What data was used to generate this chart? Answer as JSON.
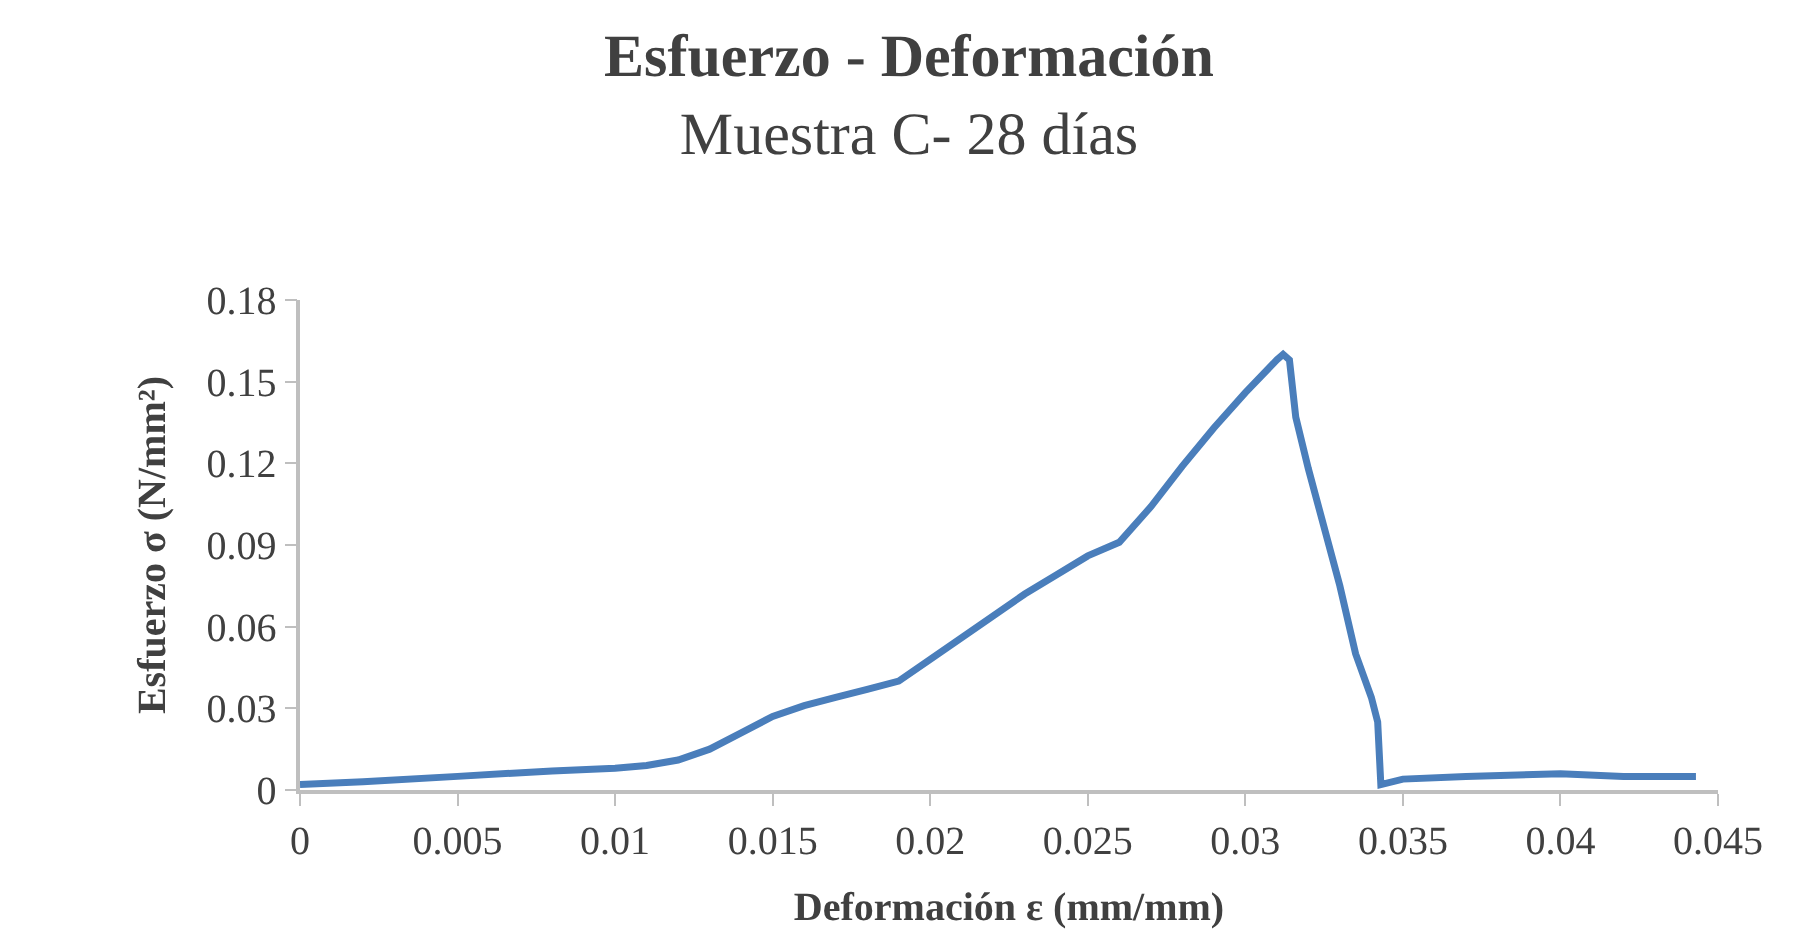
{
  "chart_data": {
    "type": "line",
    "title": "Esfuerzo - Deformación",
    "subtitle": "Muestra C- 28 días",
    "xlabel": "Deformación ε (mm/mm)",
    "ylabel": "Esfuerzo σ (N/mm²)",
    "xlim": [
      0,
      0.045
    ],
    "xticks": [
      0,
      0.005,
      0.01,
      0.015,
      0.02,
      0.025,
      0.03,
      0.035,
      0.04,
      0.045
    ],
    "ylim": [
      0,
      0.18
    ],
    "yticks": [
      0,
      0.03,
      0.06,
      0.09,
      0.12,
      0.15,
      0.18
    ],
    "marker": "none",
    "line_style": "solid",
    "series": [
      {
        "color": "#4a7ebb",
        "x": [
          0,
          0.002,
          0.005,
          0.008,
          0.01,
          0.011,
          0.012,
          0.013,
          0.014,
          0.015,
          0.016,
          0.017,
          0.018,
          0.019,
          0.02,
          0.021,
          0.022,
          0.023,
          0.024,
          0.025,
          0.026,
          0.027,
          0.028,
          0.029,
          0.03,
          0.031,
          0.0312,
          0.0314,
          0.0316,
          0.032,
          0.033,
          0.0335,
          0.034,
          0.0342,
          0.0343,
          0.035,
          0.037,
          0.04,
          0.042,
          0.0443
        ],
        "values": [
          0.002,
          0.003,
          0.005,
          0.007,
          0.008,
          0.009,
          0.011,
          0.015,
          0.021,
          0.027,
          0.031,
          0.034,
          0.037,
          0.04,
          0.048,
          0.056,
          0.064,
          0.072,
          0.079,
          0.086,
          0.091,
          0.104,
          0.119,
          0.133,
          0.146,
          0.158,
          0.16,
          0.158,
          0.137,
          0.118,
          0.075,
          0.05,
          0.034,
          0.025,
          0.002,
          0.004,
          0.005,
          0.006,
          0.005,
          0.005
        ]
      }
    ]
  }
}
